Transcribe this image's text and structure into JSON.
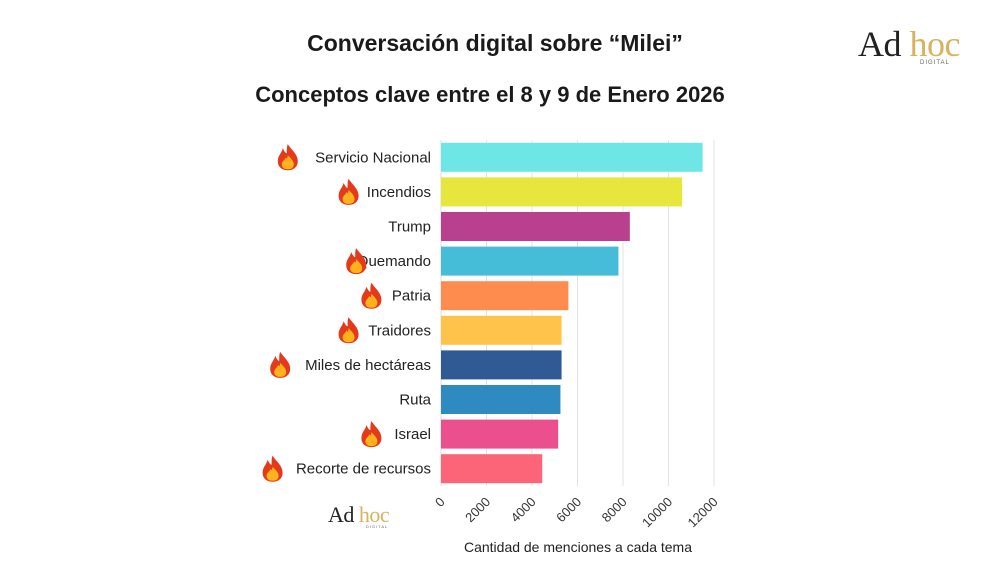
{
  "header": {
    "title": "Conversación digital sobre “Milei”",
    "subtitle": "Conceptos clave entre el 8 y 9 de Enero 2026"
  },
  "brand": {
    "word1": "Ad",
    "word2": "hoc",
    "tagline": "DIGITAL",
    "dark_color": "#222222",
    "gold_color": "#d9b25f"
  },
  "chart_data": {
    "type": "bar",
    "orientation": "horizontal",
    "categories": [
      "Servicio Nacional",
      "Incendios",
      "Trump",
      "Quemando",
      "Patria",
      "Traidores",
      "Miles de hectáreas",
      "Ruta",
      "Israel",
      "Recorte de recursos"
    ],
    "values": [
      11500,
      10600,
      8300,
      7800,
      5600,
      5300,
      5300,
      5250,
      5150,
      4450
    ],
    "fire_icon": [
      true,
      true,
      false,
      true,
      true,
      true,
      true,
      false,
      true,
      true
    ],
    "colors": [
      "#6ee6e6",
      "#e6e63c",
      "#b8408f",
      "#45bcd8",
      "#ff8c4f",
      "#ffc24a",
      "#2f5a94",
      "#2f8bbf",
      "#ec4f8d",
      "#fb6577"
    ],
    "xlabel": "Cantidad de menciones a cada tema",
    "ylabel": "",
    "xlim": [
      0,
      12000
    ],
    "xticks": [
      0,
      2000,
      4000,
      6000,
      8000,
      10000,
      12000
    ],
    "grid": "vertical",
    "icon": "fire-icon"
  }
}
